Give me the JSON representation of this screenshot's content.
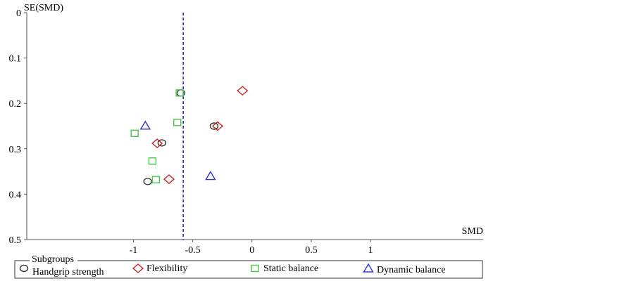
{
  "chart_data": {
    "type": "scatter",
    "title": "",
    "xlabel": "SMD",
    "ylabel": "SE(SMD)",
    "xlim": [
      -1.9,
      1.95
    ],
    "ylim": [
      0,
      0.5
    ],
    "y_inverted": true,
    "x_ticks": [
      -1,
      -0.5,
      0,
      0.5,
      1
    ],
    "x_tick_labels": [
      "-1",
      "-0.5",
      "0",
      "0.5",
      "1"
    ],
    "y_ticks": [
      0,
      0.1,
      0.2,
      0.3,
      0.4,
      0.5
    ],
    "y_tick_labels": [
      "0",
      "0.1",
      "0.2",
      "0.3",
      "0.4",
      "0.5"
    ],
    "reference_line": {
      "x": -0.58,
      "style": "dashed",
      "color": "#2a2ad4"
    },
    "legend": {
      "title": "Subgroups",
      "placement": "bottom"
    },
    "series": [
      {
        "name": "Handgrip strength",
        "marker": "circle",
        "color": "#333333",
        "points": [
          {
            "x": -0.6,
            "y": 0.177
          },
          {
            "x": -0.32,
            "y": 0.25
          },
          {
            "x": -0.76,
            "y": 0.287
          },
          {
            "x": -0.88,
            "y": 0.372
          }
        ]
      },
      {
        "name": "Flexibility",
        "marker": "diamond",
        "color": "#cc2222",
        "points": [
          {
            "x": -0.08,
            "y": 0.172
          },
          {
            "x": -0.29,
            "y": 0.25
          },
          {
            "x": -0.8,
            "y": 0.288
          },
          {
            "x": -0.7,
            "y": 0.367
          }
        ]
      },
      {
        "name": "Static balance",
        "marker": "square",
        "color": "#44cc44",
        "points": [
          {
            "x": -0.61,
            "y": 0.177
          },
          {
            "x": -0.63,
            "y": 0.242
          },
          {
            "x": -0.99,
            "y": 0.266
          },
          {
            "x": -0.84,
            "y": 0.327
          },
          {
            "x": -0.81,
            "y": 0.368
          }
        ]
      },
      {
        "name": "Dynamic balance",
        "marker": "triangle",
        "color": "#3333cc",
        "points": [
          {
            "x": -0.9,
            "y": 0.249
          },
          {
            "x": -0.35,
            "y": 0.36
          }
        ]
      }
    ]
  }
}
